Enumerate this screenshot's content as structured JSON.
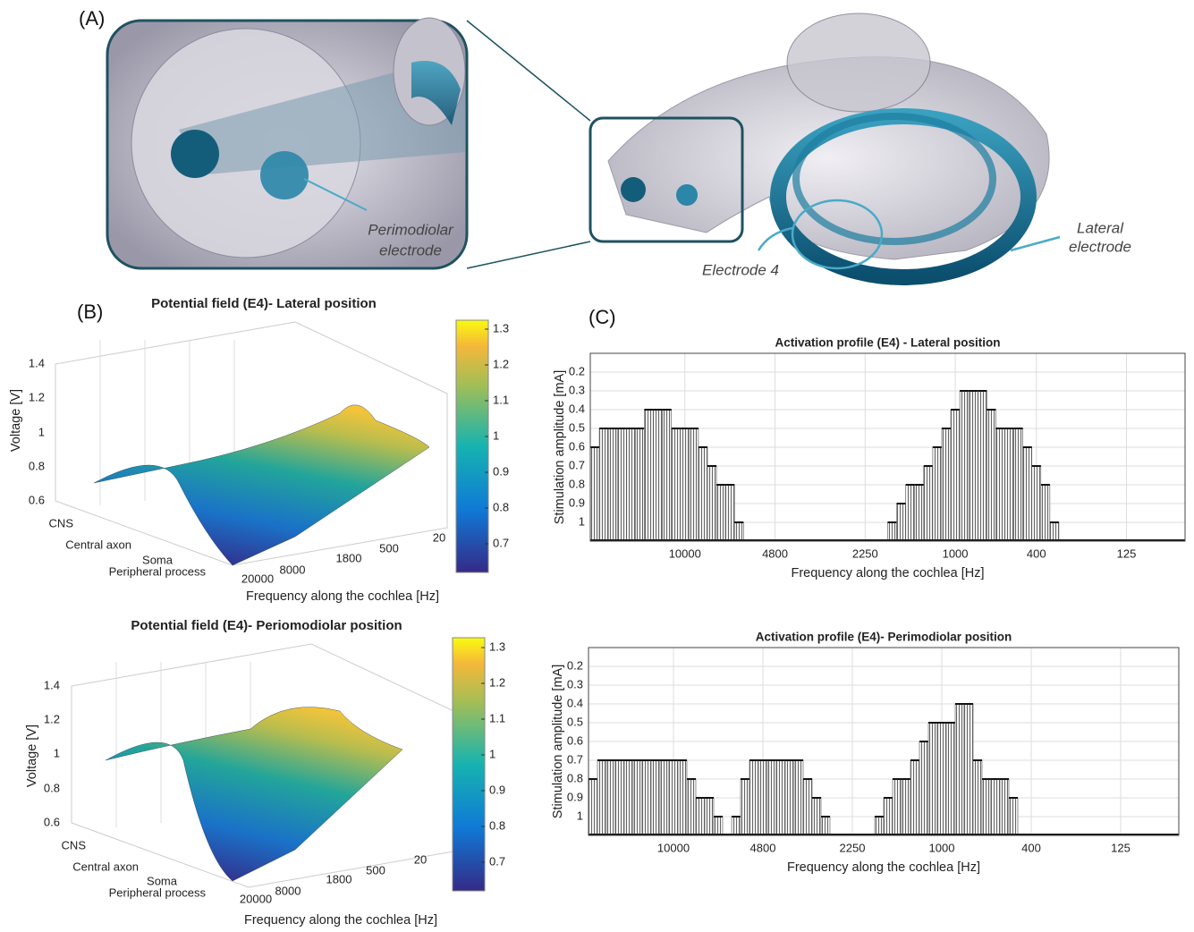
{
  "figure": {
    "panel_a": {
      "label": "(A)",
      "perimodiolar": [
        "Perimodiolar",
        "electrode"
      ],
      "lateral": [
        "Lateral",
        "electrode"
      ],
      "electrode_4": "Electrode 4"
    },
    "panel_b": {
      "label": "(B)",
      "plots": [
        {
          "title": "Potential field (E4)- Lateral position",
          "z_label": "Voltage [V]",
          "z_ticks": [
            "1.4",
            "1.2",
            "1",
            "0.8",
            "0.6"
          ],
          "y_ticks": [
            "CNS",
            "Central axon",
            "Soma",
            "Peripheral process"
          ],
          "x_ticks": [
            "20000",
            "8000",
            "1800",
            "500",
            "20"
          ],
          "x_label": "Frequency along the cochlea [Hz]",
          "colorbar_ticks": [
            "1.3",
            "1.2",
            "1.1",
            "1",
            "0.9",
            "0.8",
            "0.7"
          ]
        },
        {
          "title": "Potential field (E4)- Periomodiolar position",
          "z_label": "Voltage [V]",
          "z_ticks": [
            "1.4",
            "1.2",
            "1",
            "0.8",
            "0.6"
          ],
          "y_ticks": [
            "CNS",
            "Central axon",
            "Soma",
            "Peripheral process"
          ],
          "x_ticks": [
            "20000",
            "8000",
            "1800",
            "500",
            "20"
          ],
          "x_label": "Frequency along the cochlea [Hz]",
          "colorbar_ticks": [
            "1.3",
            "1.2",
            "1.1",
            "1",
            "0.9",
            "0.8",
            "0.7"
          ]
        }
      ]
    },
    "panel_c": {
      "label": "(C)"
    }
  },
  "chart_data": [
    {
      "type": "bar",
      "title": "Activation profile (E4) - Lateral position",
      "x_label": "Frequency along the cochlea [Hz]",
      "y_label": "Stimulation amplitude [mA]",
      "color": "#555555",
      "grid": true,
      "ylim": [
        1.1,
        0.1
      ],
      "yticks": [
        0.2,
        0.3,
        0.4,
        0.5,
        0.6,
        0.7,
        0.8,
        0.9,
        1
      ],
      "categories": [
        null,
        null,
        null,
        null,
        null,
        null,
        null,
        null,
        null,
        null,
        "10000",
        null,
        null,
        null,
        null,
        null,
        null,
        null,
        null,
        null,
        "4800",
        null,
        null,
        null,
        null,
        null,
        null,
        null,
        null,
        null,
        "2250",
        null,
        null,
        null,
        null,
        null,
        null,
        null,
        null,
        null,
        "1000",
        null,
        null,
        null,
        null,
        null,
        null,
        null,
        null,
        "400",
        null,
        null,
        null,
        null,
        null,
        null,
        null,
        null,
        null,
        "125",
        null,
        null,
        null,
        null,
        null,
        null
      ],
      "values": [
        0.6,
        0.5,
        0.5,
        0.5,
        0.5,
        0.5,
        0.4,
        0.4,
        0.4,
        0.5,
        0.5,
        0.5,
        0.6,
        0.7,
        0.8,
        0.8,
        1.0,
        null,
        null,
        null,
        null,
        null,
        null,
        null,
        null,
        null,
        null,
        null,
        null,
        null,
        null,
        null,
        null,
        1.0,
        0.9,
        0.8,
        0.8,
        0.7,
        0.6,
        0.5,
        0.4,
        0.3,
        0.3,
        0.3,
        0.4,
        0.5,
        0.5,
        0.5,
        0.6,
        0.7,
        0.8,
        1.0,
        null,
        null,
        null,
        null,
        null,
        null,
        null,
        null,
        null,
        null,
        null,
        null,
        null,
        null
      ]
    },
    {
      "type": "bar",
      "title": "Activation profile (E4)- Perimodiolar position",
      "x_label": "Frequency along the cochlea [Hz]",
      "y_label": "Stimulation amplitude [mA]",
      "color": "#555555",
      "grid": true,
      "ylim": [
        1.1,
        0.1
      ],
      "yticks": [
        0.2,
        0.3,
        0.4,
        0.5,
        0.6,
        0.7,
        0.8,
        0.9,
        1
      ],
      "categories": [
        null,
        null,
        null,
        null,
        null,
        null,
        null,
        null,
        null,
        "10000",
        null,
        null,
        null,
        null,
        null,
        null,
        null,
        null,
        null,
        "4800",
        null,
        null,
        null,
        null,
        null,
        null,
        null,
        null,
        null,
        "2250",
        null,
        null,
        null,
        null,
        null,
        null,
        null,
        null,
        null,
        "1000",
        null,
        null,
        null,
        null,
        null,
        null,
        null,
        null,
        null,
        "400",
        null,
        null,
        null,
        null,
        null,
        null,
        null,
        null,
        null,
        "125",
        null,
        null,
        null,
        null,
        null,
        null
      ],
      "values": [
        0.8,
        0.7,
        0.7,
        0.7,
        0.7,
        0.7,
        0.7,
        0.7,
        0.7,
        0.7,
        0.7,
        0.8,
        0.9,
        0.9,
        1.0,
        null,
        1.0,
        0.8,
        0.7,
        0.7,
        0.7,
        0.7,
        0.7,
        0.7,
        0.8,
        0.9,
        1.0,
        null,
        null,
        null,
        null,
        null,
        1.0,
        0.9,
        0.8,
        0.8,
        0.7,
        0.6,
        0.5,
        0.5,
        0.5,
        0.4,
        0.4,
        0.7,
        0.8,
        0.8,
        0.8,
        0.9,
        null,
        null,
        null,
        null,
        null,
        null,
        null,
        null,
        null,
        null,
        null,
        null,
        null,
        null,
        null,
        null,
        null,
        null
      ]
    }
  ]
}
